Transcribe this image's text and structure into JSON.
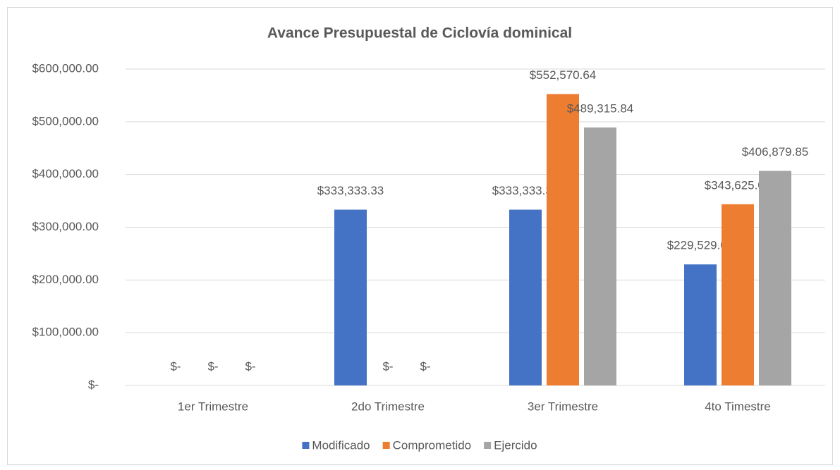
{
  "chart_data": {
    "type": "bar",
    "title": "Avance Presupuestal de Ciclovía dominical",
    "categories": [
      "1er Trimestre",
      "2do Trimestre",
      "3er Trimestre",
      "4to Timestre"
    ],
    "series": [
      {
        "name": "Modificado",
        "color": "#4472c4",
        "values": [
          0,
          333333.33,
          333333.33,
          229529.02
        ],
        "value_labels": [
          "$-",
          "$333,333.33",
          "$333,333.33",
          "$229,529.02"
        ]
      },
      {
        "name": "Comprometido",
        "color": "#ed7d31",
        "values": [
          0,
          0,
          552570.64,
          343625.05
        ],
        "value_labels": [
          "$-",
          "$-",
          "$552,570.64",
          "$343,625.05"
        ]
      },
      {
        "name": "Ejercido",
        "color": "#a5a5a5",
        "values": [
          0,
          0,
          489315.84,
          406879.85
        ],
        "value_labels": [
          "$-",
          "$-",
          "$489,315.84",
          "$406,879.85"
        ]
      }
    ],
    "ylim": [
      0,
      600000
    ],
    "yticks": [
      {
        "value": 0,
        "label": "$-"
      },
      {
        "value": 100000,
        "label": "$100,000.00"
      },
      {
        "value": 200000,
        "label": "$200,000.00"
      },
      {
        "value": 300000,
        "label": "$300,000.00"
      },
      {
        "value": 400000,
        "label": "$400,000.00"
      },
      {
        "value": 500000,
        "label": "$500,000.00"
      },
      {
        "value": 600000,
        "label": "$600,000.00"
      }
    ],
    "grid": true,
    "legend": "bottom"
  }
}
